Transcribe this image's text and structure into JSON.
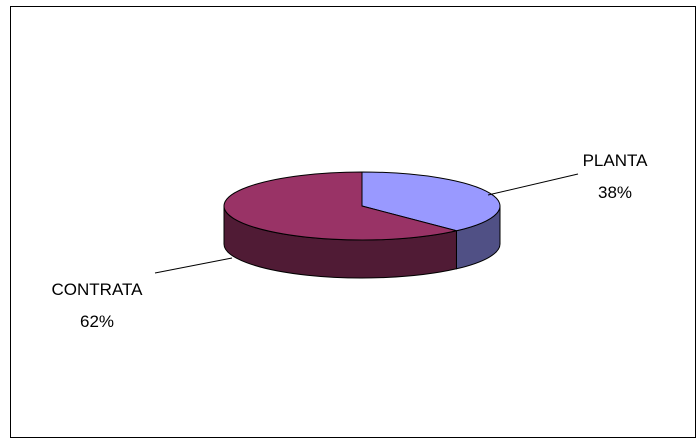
{
  "chart_data": {
    "type": "pie",
    "style": "3d",
    "title": "",
    "slices": [
      {
        "label": "PLANTA",
        "value": 38,
        "value_label": "38%",
        "color": "#9999FF"
      },
      {
        "label": "CONTRATA",
        "value": 62,
        "value_label": "62%",
        "color": "#993366"
      }
    ],
    "legend": "none",
    "grid": false
  }
}
